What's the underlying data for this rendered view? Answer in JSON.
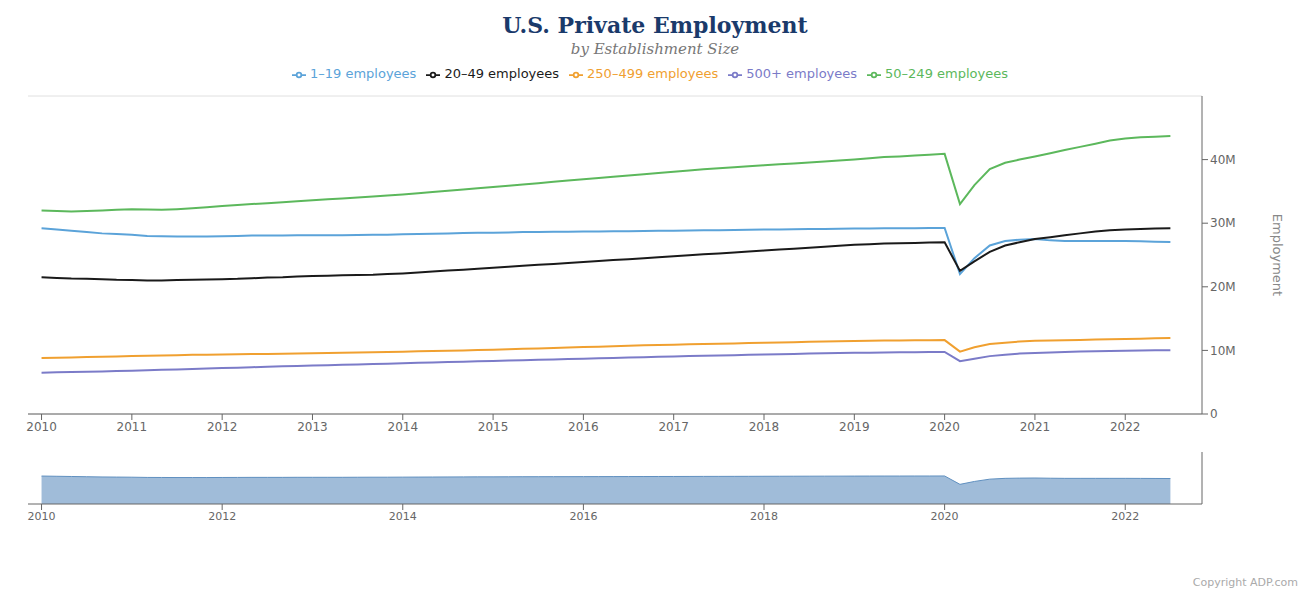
{
  "chart_data": [
    {
      "type": "line",
      "title": "U.S. Private Employment",
      "subtitle": "by Establishment Size",
      "ylabel": "Employment",
      "annotation": "Copyright ADP.com",
      "x": [
        2010.0,
        2010.17,
        2010.33,
        2010.5,
        2010.67,
        2010.83,
        2011.0,
        2011.17,
        2011.33,
        2011.5,
        2011.67,
        2011.83,
        2012.0,
        2012.17,
        2012.33,
        2012.5,
        2012.67,
        2012.83,
        2013.0,
        2013.17,
        2013.33,
        2013.5,
        2013.67,
        2013.83,
        2014.0,
        2014.17,
        2014.33,
        2014.5,
        2014.67,
        2014.83,
        2015.0,
        2015.17,
        2015.33,
        2015.5,
        2015.67,
        2015.83,
        2016.0,
        2016.17,
        2016.33,
        2016.5,
        2016.67,
        2016.83,
        2017.0,
        2017.17,
        2017.33,
        2017.5,
        2017.67,
        2017.83,
        2018.0,
        2018.17,
        2018.33,
        2018.5,
        2018.67,
        2018.83,
        2019.0,
        2019.17,
        2019.33,
        2019.5,
        2019.67,
        2019.83,
        2020.0,
        2020.17,
        2020.33,
        2020.5,
        2020.67,
        2020.83,
        2021.0,
        2021.17,
        2021.33,
        2021.5,
        2021.67,
        2021.83,
        2022.0,
        2022.17,
        2022.33,
        2022.5
      ],
      "series": [
        {
          "name": "1–19 employees",
          "color": "#5ba3d9",
          "values": [
            29200000,
            29000000,
            28800000,
            28600000,
            28400000,
            28300000,
            28200000,
            28000000,
            27950000,
            27900000,
            27900000,
            27900000,
            27950000,
            28000000,
            28050000,
            28050000,
            28050000,
            28100000,
            28100000,
            28100000,
            28100000,
            28150000,
            28200000,
            28200000,
            28250000,
            28300000,
            28350000,
            28400000,
            28450000,
            28500000,
            28500000,
            28550000,
            28600000,
            28620000,
            28640000,
            28660000,
            28680000,
            28700000,
            28720000,
            28750000,
            28780000,
            28800000,
            28820000,
            28850000,
            28880000,
            28900000,
            28920000,
            28960000,
            29000000,
            29020000,
            29050000,
            29080000,
            29100000,
            29120000,
            29150000,
            29180000,
            29200000,
            29200000,
            29220000,
            29230000,
            29250000,
            22000000,
            24500000,
            26500000,
            27200000,
            27400000,
            27500000,
            27300000,
            27200000,
            27200000,
            27200000,
            27200000,
            27200000,
            27150000,
            27100000,
            27050000
          ]
        },
        {
          "name": "20–49 employees",
          "color": "#1a1a1a",
          "values": [
            21500000,
            21400000,
            21300000,
            21250000,
            21200000,
            21100000,
            21050000,
            21000000,
            21000000,
            21050000,
            21100000,
            21150000,
            21200000,
            21250000,
            21350000,
            21450000,
            21500000,
            21600000,
            21700000,
            21750000,
            21800000,
            21850000,
            21900000,
            22000000,
            22100000,
            22250000,
            22400000,
            22550000,
            22700000,
            22850000,
            23000000,
            23150000,
            23300000,
            23450000,
            23600000,
            23750000,
            23900000,
            24050000,
            24200000,
            24350000,
            24500000,
            24650000,
            24800000,
            24950000,
            25100000,
            25250000,
            25400000,
            25550000,
            25700000,
            25850000,
            26000000,
            26150000,
            26300000,
            26450000,
            26600000,
            26700000,
            26800000,
            26850000,
            26900000,
            26950000,
            27000000,
            22500000,
            24000000,
            25500000,
            26500000,
            27000000,
            27500000,
            27800000,
            28100000,
            28400000,
            28700000,
            28900000,
            29000000,
            29100000,
            29150000,
            29200000
          ]
        },
        {
          "name": "50–249 employees",
          "color": "#5cb85c",
          "values": [
            32000000,
            31900000,
            31850000,
            31900000,
            32000000,
            32100000,
            32200000,
            32150000,
            32100000,
            32200000,
            32350000,
            32500000,
            32700000,
            32850000,
            33000000,
            33150000,
            33300000,
            33450000,
            33600000,
            33750000,
            33900000,
            34050000,
            34200000,
            34350000,
            34500000,
            34700000,
            34900000,
            35100000,
            35300000,
            35500000,
            35700000,
            35900000,
            36100000,
            36300000,
            36500000,
            36700000,
            36900000,
            37100000,
            37300000,
            37500000,
            37700000,
            37900000,
            38100000,
            38300000,
            38500000,
            38650000,
            38800000,
            38950000,
            39100000,
            39250000,
            39400000,
            39550000,
            39700000,
            39850000,
            40000000,
            40200000,
            40400000,
            40500000,
            40650000,
            40750000,
            40900000,
            33000000,
            36000000,
            38500000,
            39500000,
            40000000,
            40500000,
            41000000,
            41500000,
            42000000,
            42500000,
            43000000,
            43300000,
            43500000,
            43600000,
            43700000
          ]
        },
        {
          "name": "250–499 employees",
          "color": "#f0a030",
          "values": [
            8800000,
            8850000,
            8900000,
            8950000,
            9000000,
            9050000,
            9100000,
            9150000,
            9200000,
            9250000,
            9300000,
            9320000,
            9350000,
            9380000,
            9420000,
            9450000,
            9480000,
            9510000,
            9540000,
            9580000,
            9620000,
            9660000,
            9700000,
            9750000,
            9800000,
            9850000,
            9900000,
            9950000,
            10000000,
            10050000,
            10100000,
            10170000,
            10240000,
            10310000,
            10380000,
            10450000,
            10520000,
            10590000,
            10660000,
            10730000,
            10800000,
            10850000,
            10900000,
            10950000,
            11000000,
            11050000,
            11100000,
            11150000,
            11200000,
            11250000,
            11300000,
            11350000,
            11400000,
            11440000,
            11480000,
            11510000,
            11540000,
            11560000,
            11580000,
            11600000,
            11620000,
            9800000,
            10500000,
            11000000,
            11200000,
            11400000,
            11500000,
            11550000,
            11600000,
            11650000,
            11700000,
            11750000,
            11800000,
            11850000,
            11900000,
            11950000
          ]
        },
        {
          "name": "500+ employees",
          "color": "#7b7bc8",
          "values": [
            6500000,
            6550000,
            6600000,
            6650000,
            6700000,
            6750000,
            6800000,
            6870000,
            6940000,
            7010000,
            7080000,
            7150000,
            7220000,
            7290000,
            7360000,
            7430000,
            7500000,
            7560000,
            7620000,
            7680000,
            7740000,
            7800000,
            7860000,
            7920000,
            7980000,
            8040000,
            8100000,
            8160000,
            8220000,
            8280000,
            8340000,
            8400000,
            8460000,
            8520000,
            8580000,
            8640000,
            8700000,
            8760000,
            8820000,
            8880000,
            8940000,
            9000000,
            9050000,
            9100000,
            9150000,
            9200000,
            9250000,
            9300000,
            9350000,
            9400000,
            9450000,
            9500000,
            9540000,
            9580000,
            9620000,
            9650000,
            9680000,
            9700000,
            9720000,
            9740000,
            9760000,
            8300000,
            8700000,
            9100000,
            9300000,
            9500000,
            9600000,
            9680000,
            9760000,
            9820000,
            9880000,
            9920000,
            9960000,
            9990000,
            10010000,
            10030000
          ]
        }
      ],
      "xlim": [
        2009.85,
        2022.85
      ],
      "xticks": [
        2010,
        2011,
        2012,
        2013,
        2014,
        2015,
        2016,
        2017,
        2018,
        2019,
        2020,
        2021,
        2022
      ],
      "ylim": [
        0,
        50000000
      ],
      "yticks": [
        0,
        {
          "value": 10000000,
          "label": "10M"
        },
        {
          "value": 20000000,
          "label": "20M"
        },
        {
          "value": 30000000,
          "label": "30M"
        },
        {
          "value": 40000000,
          "label": "40M"
        }
      ],
      "grid": "y",
      "legend": "top"
    },
    {
      "type": "area",
      "color": "#6090c0",
      "x": [
        2010.0,
        2010.17,
        2010.33,
        2010.5,
        2010.67,
        2010.83,
        2011.0,
        2011.17,
        2011.33,
        2011.5,
        2011.67,
        2011.83,
        2012.0,
        2012.17,
        2012.33,
        2012.5,
        2012.67,
        2012.83,
        2013.0,
        2013.17,
        2013.33,
        2013.5,
        2013.67,
        2013.83,
        2014.0,
        2014.17,
        2014.33,
        2014.5,
        2014.67,
        2014.83,
        2015.0,
        2015.17,
        2015.33,
        2015.5,
        2015.67,
        2015.83,
        2016.0,
        2016.17,
        2016.33,
        2016.5,
        2016.67,
        2016.83,
        2017.0,
        2017.17,
        2017.33,
        2017.5,
        2017.67,
        2017.83,
        2018.0,
        2018.17,
        2018.33,
        2018.5,
        2018.67,
        2018.83,
        2019.0,
        2019.17,
        2019.33,
        2019.5,
        2019.67,
        2019.83,
        2020.0,
        2020.17,
        2020.33,
        2020.5,
        2020.67,
        2020.83,
        2021.0,
        2021.17,
        2021.33,
        2021.5,
        2021.67,
        2021.83,
        2022.0,
        2022.17,
        2022.33,
        2022.5
      ],
      "values": [
        29200000,
        29000000,
        28800000,
        28600000,
        28400000,
        28300000,
        28200000,
        28000000,
        27950000,
        27900000,
        27900000,
        27900000,
        27950000,
        28000000,
        28050000,
        28050000,
        28050000,
        28100000,
        28100000,
        28100000,
        28100000,
        28150000,
        28200000,
        28200000,
        28250000,
        28300000,
        28350000,
        28400000,
        28450000,
        28500000,
        28500000,
        28550000,
        28600000,
        28620000,
        28640000,
        28660000,
        28680000,
        28700000,
        28720000,
        28750000,
        28780000,
        28800000,
        28820000,
        28850000,
        28880000,
        28900000,
        28920000,
        28960000,
        29000000,
        29020000,
        29050000,
        29080000,
        29100000,
        29120000,
        29150000,
        29180000,
        29200000,
        29200000,
        29220000,
        29230000,
        29250000,
        22000000,
        24500000,
        26500000,
        27200000,
        27400000,
        27500000,
        27300000,
        27200000,
        27200000,
        27200000,
        27200000,
        27200000,
        27150000,
        27100000,
        27050000
      ],
      "xlim": [
        2009.85,
        2022.85
      ],
      "xticks": [
        2010,
        2012,
        2014,
        2016,
        2018,
        2020,
        2022
      ],
      "ylim": [
        5000000,
        50000000
      ],
      "grid": false,
      "tick_labels": "x"
    }
  ]
}
